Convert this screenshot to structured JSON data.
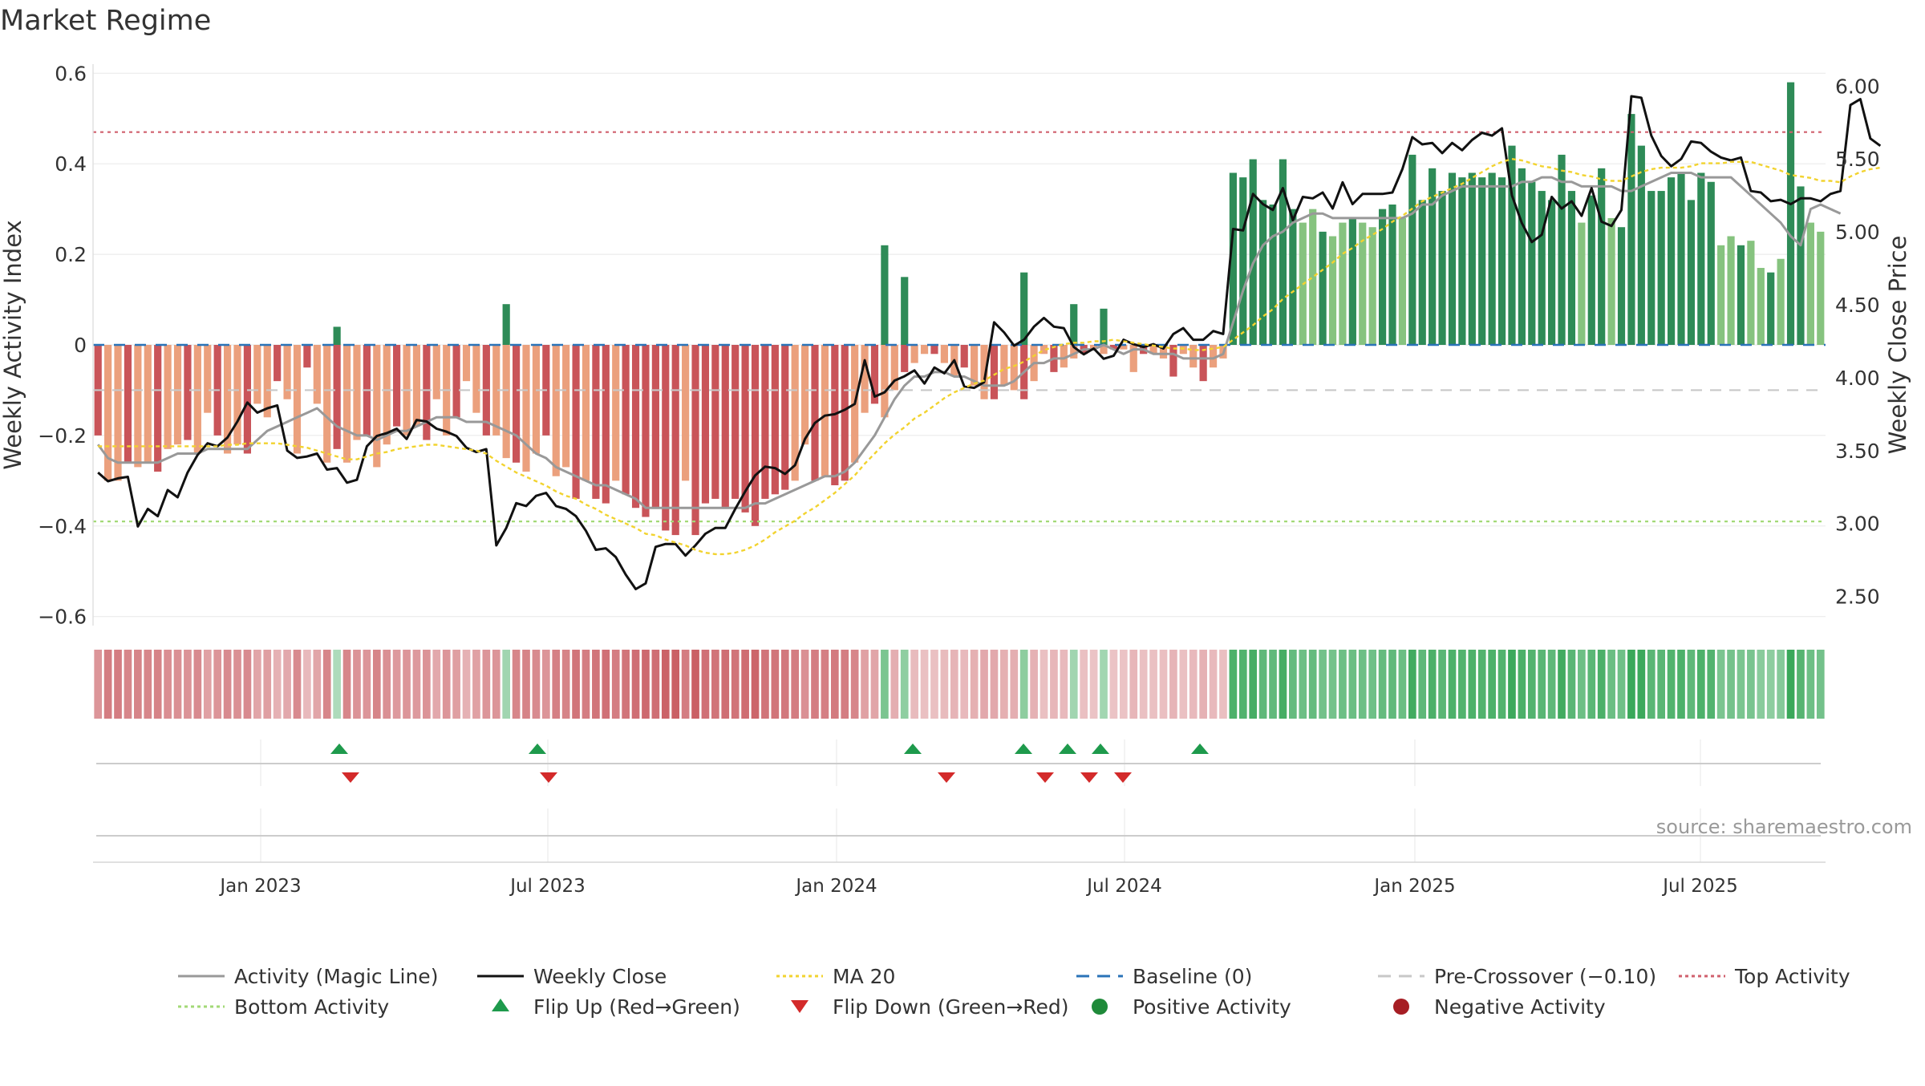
{
  "title": "Market Regime",
  "source": "source: sharemaestro.com",
  "chart_data": {
    "type": "bar",
    "title": "Market Regime",
    "x_ticks": [
      "Jan 2023",
      "Jul 2023",
      "Jan 2024",
      "Jul 2024",
      "Jan 2025",
      "Jul 2025"
    ],
    "left_axis": {
      "label": "Weekly Activity Index",
      "range": [
        -0.62,
        0.62
      ],
      "ticks": [
        0.6,
        0.4,
        0.2,
        0,
        -0.2,
        -0.4,
        -0.6
      ],
      "tick_labels": [
        "0.6",
        "0.4",
        "0.2",
        "0",
        "−0.2",
        "−0.4",
        "−0.6"
      ]
    },
    "right_axis": {
      "label": "Weekly Close Price",
      "range": [
        2.3,
        6.15
      ],
      "ticks": [
        6.0,
        5.5,
        5.0,
        4.5,
        4.0,
        3.5,
        3.0,
        2.5
      ],
      "tick_labels": [
        "6.00",
        "5.50",
        "5.00",
        "4.50",
        "4.00",
        "3.50",
        "3.00",
        "2.50"
      ]
    },
    "grid": true,
    "reference_lines": {
      "baseline": 0,
      "pre_crossover": -0.1,
      "top_activity": 0.47,
      "bottom_activity": -0.39
    },
    "activity_index": [
      -0.2,
      -0.3,
      -0.3,
      -0.26,
      -0.27,
      -0.26,
      -0.28,
      -0.23,
      -0.22,
      -0.21,
      -0.24,
      -0.15,
      -0.2,
      -0.24,
      -0.22,
      -0.24,
      -0.13,
      -0.16,
      -0.08,
      -0.12,
      -0.24,
      -0.05,
      -0.13,
      -0.26,
      -0.23,
      -0.26,
      -0.21,
      -0.2,
      -0.27,
      -0.22,
      -0.18,
      -0.2,
      -0.18,
      -0.21,
      -0.12,
      -0.2,
      -0.16,
      -0.08,
      -0.15,
      -0.2,
      -0.2,
      -0.25,
      -0.26,
      -0.28,
      -0.24,
      -0.2,
      -0.29,
      -0.27,
      -0.34,
      -0.3,
      -0.34,
      -0.35,
      -0.3,
      -0.33,
      -0.36,
      -0.38,
      -0.36,
      -0.41,
      -0.42,
      -0.3,
      -0.42,
      -0.35,
      -0.34,
      -0.36,
      -0.34,
      -0.37,
      -0.4,
      -0.34,
      -0.33,
      -0.32,
      -0.3,
      -0.22,
      -0.3,
      -0.29,
      -0.31,
      -0.3,
      -0.26,
      -0.15,
      -0.13,
      -0.16,
      -0.1,
      -0.06,
      -0.04,
      -0.02,
      -0.02,
      -0.04,
      -0.07,
      -0.05,
      -0.09,
      -0.12,
      -0.12,
      -0.09,
      -0.1,
      -0.12,
      -0.08,
      -0.02,
      -0.06,
      -0.05,
      -0.03,
      -0.02,
      -0.01,
      -0.02,
      -0.01,
      -0.01,
      -0.06,
      -0.02,
      -0.02,
      -0.03,
      -0.07,
      -0.02,
      -0.05,
      -0.08,
      -0.05,
      -0.03,
      0.38,
      0.37,
      0.41,
      0.32,
      0.31,
      0.41,
      0.3,
      0.27,
      0.3,
      0.25,
      0.24,
      0.27,
      0.28,
      0.27,
      0.26,
      0.3,
      0.31,
      0.28,
      0.42,
      0.32,
      0.39,
      0.34,
      0.38,
      0.37,
      0.38,
      0.37,
      0.38,
      0.37,
      0.44,
      0.39,
      0.36,
      0.34,
      0.32,
      0.42,
      0.34,
      0.27,
      0.33,
      0.39,
      0.28,
      0.26,
      0.51,
      0.44,
      0.34,
      0.34,
      0.37,
      0.38,
      0.32,
      0.38,
      0.36,
      0.22,
      0.24,
      0.22,
      0.23,
      0.17,
      0.16,
      0.19,
      0.58,
      0.35,
      0.27,
      0.25
    ],
    "activity_index_segment2": [
      0.0,
      0.0,
      0.0,
      0.0,
      0.0,
      0.0,
      0.0,
      0.0,
      0.0,
      0.0,
      0.0,
      0.0,
      0.0,
      0.0,
      0.0,
      0.0,
      0.0,
      0.0,
      0.0,
      0.0,
      0.0,
      0.0,
      0.0,
      0.0,
      0.04,
      0.0,
      0.0,
      0.0,
      0.0,
      0.0,
      0.0,
      0.0,
      0.0,
      0.0,
      0.0,
      0.0,
      0.0,
      0.0,
      0.0,
      0.0,
      0.0,
      0.09,
      0.0,
      0.0,
      0.0,
      0.0,
      0.0,
      0.0,
      0.0,
      0.0,
      0.0,
      0.0,
      0.0,
      0.0,
      0.0,
      0.0,
      0.0,
      0.0,
      0.0,
      0.0,
      0.0,
      0.0,
      0.0,
      0.0,
      0.0,
      0.0,
      0.0,
      0.0,
      0.0,
      0.0,
      0.0,
      0.0,
      0.0,
      0.0,
      0.0,
      0.0,
      0.0,
      0.0,
      0.0,
      0.22,
      0.0,
      0.15,
      0.0,
      0.0,
      0.0,
      0.0,
      0.0,
      0.0,
      0.0,
      0.0,
      0.0,
      0.0,
      0.0,
      0.16,
      0.0,
      0.0,
      0.0,
      0.0,
      0.09,
      0.0,
      0.0,
      0.08,
      0.0,
      0.0,
      0.0,
      0.0,
      0.0,
      0.0,
      0.0,
      0.0,
      0.0,
      0.0,
      0.0,
      0.0
    ],
    "series": [
      {
        "name": "Activity (Magic Line)",
        "axis": "left",
        "values": [
          -0.22,
          -0.25,
          -0.26,
          -0.26,
          -0.26,
          -0.26,
          -0.26,
          -0.25,
          -0.24,
          -0.24,
          -0.24,
          -0.23,
          -0.23,
          -0.23,
          -0.23,
          -0.23,
          -0.21,
          -0.19,
          -0.18,
          -0.17,
          -0.16,
          -0.15,
          -0.14,
          -0.16,
          -0.18,
          -0.19,
          -0.2,
          -0.2,
          -0.21,
          -0.2,
          -0.19,
          -0.19,
          -0.18,
          -0.17,
          -0.16,
          -0.16,
          -0.16,
          -0.17,
          -0.17,
          -0.17,
          -0.18,
          -0.19,
          -0.2,
          -0.22,
          -0.24,
          -0.25,
          -0.27,
          -0.28,
          -0.29,
          -0.3,
          -0.31,
          -0.31,
          -0.32,
          -0.33,
          -0.34,
          -0.36,
          -0.36,
          -0.36,
          -0.36,
          -0.36,
          -0.36,
          -0.36,
          -0.36,
          -0.36,
          -0.36,
          -0.36,
          -0.35,
          -0.35,
          -0.34,
          -0.33,
          -0.32,
          -0.31,
          -0.3,
          -0.29,
          -0.29,
          -0.28,
          -0.26,
          -0.23,
          -0.2,
          -0.16,
          -0.12,
          -0.09,
          -0.07,
          -0.07,
          -0.06,
          -0.06,
          -0.07,
          -0.07,
          -0.08,
          -0.09,
          -0.09,
          -0.09,
          -0.08,
          -0.06,
          -0.04,
          -0.04,
          -0.03,
          -0.03,
          -0.02,
          -0.01,
          -0.01,
          0.0,
          -0.01,
          -0.02,
          -0.01,
          -0.01,
          -0.02,
          -0.02,
          -0.02,
          -0.03,
          -0.03,
          -0.03,
          -0.03,
          -0.02,
          0.05,
          0.12,
          0.18,
          0.22,
          0.24,
          0.25,
          0.27,
          0.28,
          0.29,
          0.29,
          0.28,
          0.28,
          0.28,
          0.28,
          0.28,
          0.28,
          0.28,
          0.28,
          0.29,
          0.31,
          0.31,
          0.33,
          0.34,
          0.35,
          0.35,
          0.35,
          0.35,
          0.35,
          0.35,
          0.36,
          0.36,
          0.37,
          0.37,
          0.36,
          0.36,
          0.35,
          0.35,
          0.35,
          0.35,
          0.34,
          0.34,
          0.35,
          0.36,
          0.37,
          0.38,
          0.38,
          0.38,
          0.37,
          0.37,
          0.37,
          0.37,
          0.35,
          0.33,
          0.31,
          0.29,
          0.27,
          0.24,
          0.22,
          0.3,
          0.31,
          0.3,
          0.29
        ]
      },
      {
        "name": "Weekly Close",
        "axis": "right",
        "values": [
          3.35,
          3.29,
          3.31,
          3.32,
          2.98,
          3.1,
          3.05,
          3.23,
          3.18,
          3.35,
          3.47,
          3.55,
          3.53,
          3.59,
          3.7,
          3.83,
          3.76,
          3.79,
          3.81,
          3.5,
          3.45,
          3.46,
          3.48,
          3.37,
          3.38,
          3.28,
          3.3,
          3.53,
          3.6,
          3.62,
          3.65,
          3.58,
          3.71,
          3.7,
          3.65,
          3.63,
          3.6,
          3.52,
          3.49,
          3.51,
          2.85,
          2.97,
          3.14,
          3.12,
          3.19,
          3.21,
          3.12,
          3.1,
          3.05,
          2.95,
          2.82,
          2.83,
          2.77,
          2.65,
          2.55,
          2.59,
          2.84,
          2.86,
          2.86,
          2.78,
          2.85,
          2.93,
          2.97,
          2.97,
          3.1,
          3.22,
          3.33,
          3.39,
          3.38,
          3.34,
          3.4,
          3.58,
          3.69,
          3.74,
          3.75,
          3.78,
          3.82,
          4.12,
          3.87,
          3.9,
          3.98,
          4.01,
          4.05,
          3.96,
          4.07,
          4.03,
          4.12,
          3.94,
          3.93,
          3.97,
          4.38,
          4.31,
          4.22,
          4.26,
          4.35,
          4.41,
          4.35,
          4.34,
          4.21,
          4.16,
          4.2,
          4.13,
          4.15,
          4.26,
          4.23,
          4.21,
          4.23,
          4.2,
          4.3,
          4.34,
          4.26,
          4.26,
          4.32,
          4.3,
          5.02,
          5.01,
          5.26,
          5.19,
          5.15,
          5.3,
          5.08,
          5.24,
          5.23,
          5.27,
          5.16,
          5.34,
          5.19,
          5.26,
          5.26,
          5.26,
          5.27,
          5.43,
          5.65,
          5.6,
          5.61,
          5.54,
          5.61,
          5.56,
          5.63,
          5.68,
          5.66,
          5.71,
          5.25,
          5.06,
          4.93,
          4.98,
          5.24,
          5.16,
          5.21,
          5.11,
          5.3,
          5.07,
          5.04,
          5.15,
          5.93,
          5.92,
          5.66,
          5.52,
          5.45,
          5.5,
          5.62,
          5.61,
          5.55,
          5.51,
          5.49,
          5.51,
          5.28,
          5.27,
          5.21,
          5.22,
          5.19,
          5.23,
          5.23,
          5.21,
          5.26,
          5.28,
          5.87,
          5.91,
          5.64,
          5.59
        ]
      },
      {
        "name": "MA 20",
        "axis": "right",
        "values": [
          3.53,
          3.53,
          3.53,
          3.53,
          3.53,
          3.53,
          3.53,
          3.53,
          3.53,
          3.53,
          3.53,
          3.53,
          3.53,
          3.54,
          3.54,
          3.55,
          3.55,
          3.55,
          3.55,
          3.54,
          3.53,
          3.52,
          3.5,
          3.48,
          3.46,
          3.44,
          3.44,
          3.46,
          3.48,
          3.49,
          3.51,
          3.52,
          3.53,
          3.54,
          3.54,
          3.53,
          3.52,
          3.51,
          3.5,
          3.48,
          3.43,
          3.39,
          3.35,
          3.32,
          3.29,
          3.26,
          3.22,
          3.19,
          3.17,
          3.13,
          3.1,
          3.06,
          3.03,
          3.0,
          2.97,
          2.93,
          2.92,
          2.89,
          2.87,
          2.85,
          2.82,
          2.8,
          2.79,
          2.79,
          2.8,
          2.82,
          2.85,
          2.89,
          2.94,
          2.98,
          3.02,
          3.07,
          3.11,
          3.16,
          3.21,
          3.27,
          3.33,
          3.41,
          3.48,
          3.55,
          3.61,
          3.66,
          3.72,
          3.76,
          3.81,
          3.86,
          3.9,
          3.93,
          3.96,
          3.98,
          4.02,
          4.06,
          4.08,
          4.11,
          4.15,
          4.19,
          4.21,
          4.23,
          4.24,
          4.24,
          4.25,
          4.25,
          4.26,
          4.25,
          4.24,
          4.23,
          4.22,
          4.21,
          4.2,
          4.2,
          4.19,
          4.19,
          4.2,
          4.21,
          4.26,
          4.31,
          4.36,
          4.42,
          4.47,
          4.54,
          4.59,
          4.64,
          4.69,
          4.74,
          4.79,
          4.85,
          4.89,
          4.94,
          4.98,
          5.02,
          5.07,
          5.11,
          5.16,
          5.21,
          5.24,
          5.27,
          5.3,
          5.33,
          5.37,
          5.41,
          5.45,
          5.48,
          5.5,
          5.49,
          5.47,
          5.45,
          5.44,
          5.42,
          5.41,
          5.39,
          5.38,
          5.36,
          5.35,
          5.35,
          5.38,
          5.41,
          5.43,
          5.44,
          5.44,
          5.44,
          5.45,
          5.47,
          5.47,
          5.47,
          5.48,
          5.48,
          5.48,
          5.46,
          5.44,
          5.42,
          5.39,
          5.38,
          5.37,
          5.35,
          5.35,
          5.34,
          5.38,
          5.41,
          5.43,
          5.44
        ]
      }
    ],
    "regime_strip": [
      -0.2,
      -0.3,
      -0.3,
      -0.26,
      -0.27,
      -0.26,
      -0.28,
      -0.23,
      -0.22,
      -0.21,
      -0.24,
      -0.15,
      -0.2,
      -0.24,
      -0.22,
      -0.24,
      -0.13,
      -0.16,
      -0.08,
      -0.12,
      -0.24,
      -0.05,
      -0.13,
      -0.26,
      0.04,
      -0.26,
      -0.21,
      -0.2,
      -0.27,
      -0.22,
      -0.18,
      -0.2,
      -0.18,
      -0.21,
      -0.12,
      -0.2,
      -0.16,
      -0.08,
      -0.15,
      -0.2,
      -0.2,
      0.09,
      -0.26,
      -0.28,
      -0.24,
      -0.2,
      -0.29,
      -0.27,
      -0.34,
      -0.3,
      -0.34,
      -0.35,
      -0.3,
      -0.33,
      -0.36,
      -0.38,
      -0.36,
      -0.41,
      -0.42,
      -0.3,
      -0.42,
      -0.35,
      -0.34,
      -0.36,
      -0.34,
      -0.37,
      -0.4,
      -0.34,
      -0.33,
      -0.32,
      -0.3,
      -0.22,
      -0.3,
      -0.29,
      -0.31,
      -0.3,
      -0.26,
      -0.15,
      -0.13,
      0.22,
      -0.1,
      0.15,
      -0.04,
      -0.02,
      -0.02,
      -0.04,
      -0.07,
      -0.05,
      -0.09,
      -0.12,
      -0.12,
      -0.09,
      -0.1,
      0.16,
      -0.08,
      -0.02,
      -0.06,
      -0.05,
      0.09,
      -0.02,
      -0.01,
      0.08,
      -0.01,
      -0.01,
      -0.06,
      -0.02,
      -0.02,
      -0.03,
      -0.07,
      -0.02,
      -0.05,
      -0.08,
      -0.05,
      -0.03,
      0.38,
      0.37,
      0.41,
      0.32,
      0.31,
      0.41,
      0.3,
      0.27,
      0.3,
      0.25,
      0.24,
      0.27,
      0.28,
      0.27,
      0.26,
      0.3,
      0.31,
      0.28,
      0.42,
      0.32,
      0.39,
      0.34,
      0.38,
      0.37,
      0.38,
      0.37,
      0.38,
      0.37,
      0.44,
      0.39,
      0.36,
      0.34,
      0.32,
      0.42,
      0.34,
      0.27,
      0.33,
      0.39,
      0.28,
      0.26,
      0.51,
      0.44,
      0.34,
      0.34,
      0.37,
      0.38,
      0.32,
      0.38,
      0.36,
      0.22,
      0.24,
      0.22,
      0.23,
      0.17,
      0.16,
      0.19,
      0.58,
      0.35,
      0.27,
      0.25
    ],
    "flip_up_weeks": [
      "2023-03",
      "2023-06",
      "2024-03",
      "2024-05",
      "2024-06a",
      "2024-06b",
      "2024-08"
    ],
    "flip_down_weeks": [
      "2023-03",
      "2023-06",
      "2024-04",
      "2024-05",
      "2024-06",
      "2024-07"
    ],
    "legend": {
      "placement": "bottom",
      "items": [
        {
          "label": "Activity (Magic Line)",
          "symbol": "line",
          "color": "#999999"
        },
        {
          "label": "Weekly Close",
          "symbol": "line",
          "color": "#111111"
        },
        {
          "label": "MA 20",
          "symbol": "dotted",
          "color": "#f2d32f"
        },
        {
          "label": "Baseline (0)",
          "symbol": "dashed",
          "color": "#2a73b8"
        },
        {
          "label": "Pre-Crossover (−0.10)",
          "symbol": "dashed",
          "color": "#c8c8c8"
        },
        {
          "label": "Top Activity",
          "symbol": "dotted",
          "color": "#d0606e"
        },
        {
          "label": "Bottom Activity",
          "symbol": "dotted",
          "color": "#a3d977"
        },
        {
          "label": "Flip Up (Red→Green)",
          "symbol": "triangle-up",
          "color": "#1e9a4c"
        },
        {
          "label": "Flip Down (Green→Red)",
          "symbol": "triangle-down",
          "color": "#d32a2a"
        },
        {
          "label": "Positive Activity",
          "symbol": "dot",
          "color": "#1f8a3a"
        },
        {
          "label": "Negative Activity",
          "symbol": "dot",
          "color": "#a61e24"
        }
      ]
    },
    "colors": {
      "positive_strong": "#2e8b57",
      "positive_light": "#86c37f",
      "negative_strong": "#c95459",
      "negative_light": "#eba07d"
    }
  }
}
